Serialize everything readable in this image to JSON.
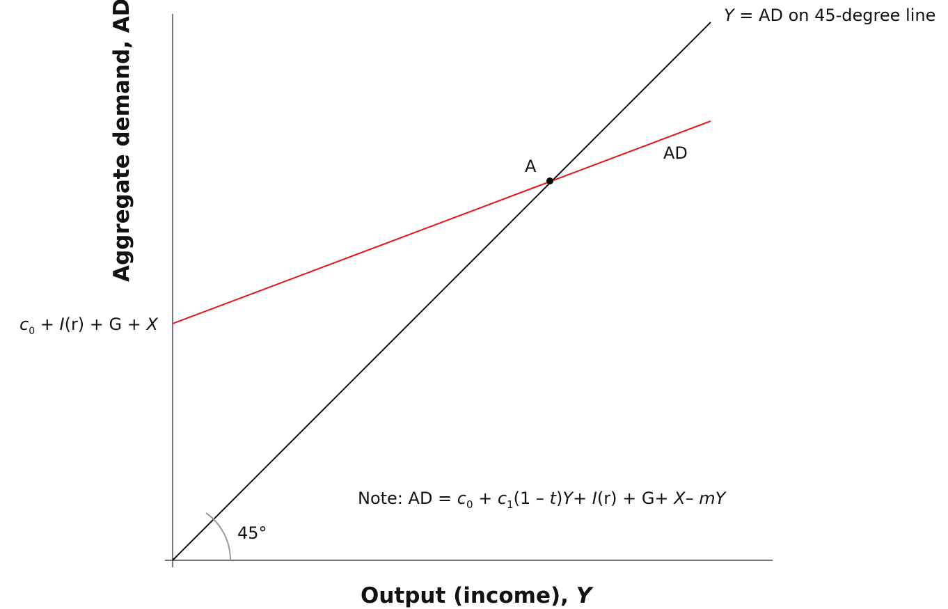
{
  "axes": {
    "x_title": "Output (income), ",
    "x_title_var": "Y",
    "y_title": "Aggregate demand, AD"
  },
  "lines": {
    "forty_five_label_var": "Y",
    "forty_five_label_rest": " = AD on 45-degree line",
    "ad_label": "AD",
    "ad_color": "#e8131b",
    "forty_five_color": "#000000",
    "axis_color": "#777777"
  },
  "intercept": {
    "c": "c",
    "sub0": "0",
    "plus1": " + ",
    "I": "I",
    "r": "(r)",
    "rest": " + G + ",
    "X": "X"
  },
  "point_a": {
    "label": "A"
  },
  "angle": {
    "label": "45°"
  },
  "note": {
    "prefix": "Note: AD = ",
    "c0": "c",
    "sub0": "0",
    "mid1": " + ",
    "c1": "c",
    "sub1": "1",
    "mid2": "(1 – ",
    "t": "t",
    "mid3": ")",
    "Y1": "Y",
    "mid4": "+  ",
    "I": "I",
    "r": "(r)",
    "mid5": " + G+  ",
    "X": "X",
    "mid6": "–  ",
    "m": "mY"
  }
}
